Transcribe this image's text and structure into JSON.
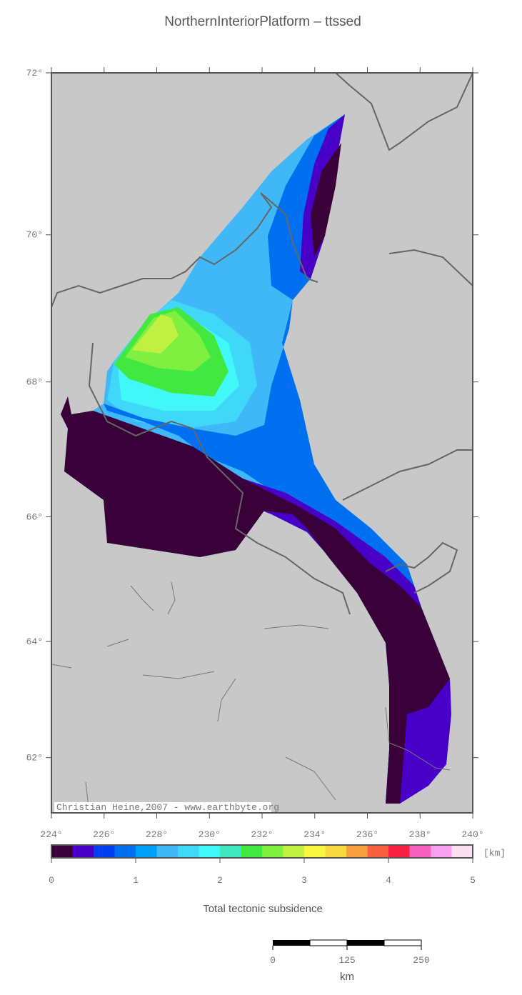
{
  "title": "NorthernInteriorPlatform – ttssed",
  "map": {
    "lon_range": [
      224,
      240
    ],
    "lat_range": [
      61,
      72
    ],
    "lon_ticks": [
      {
        "value": 224,
        "label": "224°"
      },
      {
        "value": 226,
        "label": "226°"
      },
      {
        "value": 228,
        "label": "228°"
      },
      {
        "value": 230,
        "label": "230°"
      },
      {
        "value": 232,
        "label": "232°"
      },
      {
        "value": 234,
        "label": "234°"
      },
      {
        "value": 236,
        "label": "236°"
      },
      {
        "value": 238,
        "label": "238°"
      },
      {
        "value": 240,
        "label": "240°"
      }
    ],
    "lat_ticks": [
      {
        "value": 62,
        "label": "62°"
      },
      {
        "value": 64,
        "label": "64°"
      },
      {
        "value": 66,
        "label": "66°"
      },
      {
        "value": 68,
        "label": "68°"
      },
      {
        "value": 70,
        "label": "70°"
      },
      {
        "value": 72,
        "label": "72°"
      }
    ],
    "credit": "Christian Heine,2007 - www.earthbyte.org"
  },
  "colorbar": {
    "range": [
      0,
      5
    ],
    "ticks": [
      0,
      1,
      2,
      3,
      4,
      5
    ],
    "unit": "[km]",
    "label": "Total tectonic subsidence",
    "colors": [
      "#3a003a",
      "#4800c8",
      "#0040f0",
      "#0070f0",
      "#00a0f8",
      "#40b8f8",
      "#40d8f8",
      "#40f8f8",
      "#40e8c0",
      "#40e840",
      "#80f040",
      "#c0f040",
      "#f8f840",
      "#f8d840",
      "#f8a040",
      "#f86040",
      "#f82040",
      "#f860c0",
      "#f8a0f0",
      "#f8e0f0"
    ]
  },
  "scalebar": {
    "range": [
      0,
      250
    ],
    "ticks": [
      0,
      125,
      250
    ],
    "unit": "km"
  }
}
